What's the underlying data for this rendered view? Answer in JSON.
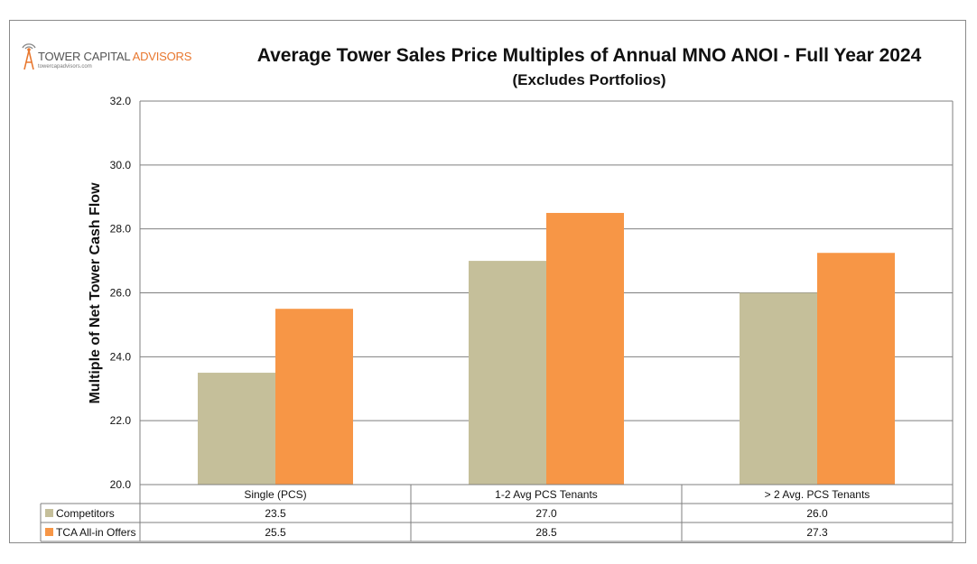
{
  "logo": {
    "name_part1": "TOWER CAPITAL ",
    "name_part2": "ADVISORS",
    "url": "towercapadvisors.com"
  },
  "colors": {
    "competitors": "#c5bf9a",
    "tca": "#f79646",
    "grid": "#7f7f7f",
    "logo_accent": "#e8772e"
  },
  "chart_data": {
    "type": "bar",
    "title": "Average Tower Sales Price Multiples of Annual MNO ANOI - Full Year 2024",
    "subtitle": "(Excludes Portfolios)",
    "ylabel": "Multiple of Net Tower Cash Flow",
    "xlabel": "",
    "ylim": [
      20.0,
      32.0
    ],
    "yticks": [
      "20.0",
      "22.0",
      "24.0",
      "26.0",
      "28.0",
      "30.0",
      "32.0"
    ],
    "grid": true,
    "legend": "data-table",
    "categories": [
      "Single (PCS)",
      "1-2 Avg PCS Tenants",
      "> 2 Avg. PCS Tenants"
    ],
    "series": [
      {
        "name": "Competitors",
        "values": [
          23.5,
          27.0,
          26.0
        ],
        "labels": [
          "23.5",
          "27.0",
          "26.0"
        ]
      },
      {
        "name": "TCA All-in Offers",
        "values": [
          25.5,
          28.5,
          27.25
        ],
        "labels": [
          "25.5",
          "28.5",
          "27.3"
        ]
      }
    ]
  }
}
